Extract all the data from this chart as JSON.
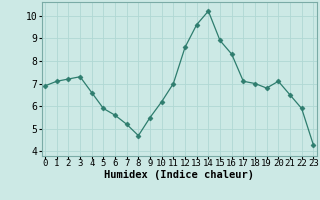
{
  "x": [
    0,
    1,
    2,
    3,
    4,
    5,
    6,
    7,
    8,
    9,
    10,
    11,
    12,
    13,
    14,
    15,
    16,
    17,
    18,
    19,
    20,
    21,
    22,
    23
  ],
  "y": [
    6.9,
    7.1,
    7.2,
    7.3,
    6.6,
    5.9,
    5.6,
    5.2,
    4.7,
    5.5,
    6.2,
    7.0,
    8.6,
    9.6,
    10.2,
    8.9,
    8.3,
    7.1,
    7.0,
    6.8,
    7.1,
    6.5,
    5.9,
    4.3
  ],
  "line_color": "#2e7d6e",
  "marker": "D",
  "marker_size": 2.5,
  "background_color": "#cce9e5",
  "grid_color": "#b0d8d4",
  "xlabel": "Humidex (Indice chaleur)",
  "xlabel_fontsize": 7.5,
  "tick_fontsize": 7,
  "ylim": [
    3.8,
    10.6
  ],
  "yticks": [
    4,
    5,
    6,
    7,
    8,
    9,
    10
  ],
  "xlim": [
    -0.3,
    23.3
  ],
  "xtick_labels": [
    "0",
    "1",
    "2",
    "3",
    "4",
    "5",
    "6",
    "7",
    "8",
    "9",
    "10",
    "11",
    "12",
    "13",
    "14",
    "15",
    "16",
    "17",
    "18",
    "19",
    "20",
    "21",
    "22",
    "23"
  ]
}
